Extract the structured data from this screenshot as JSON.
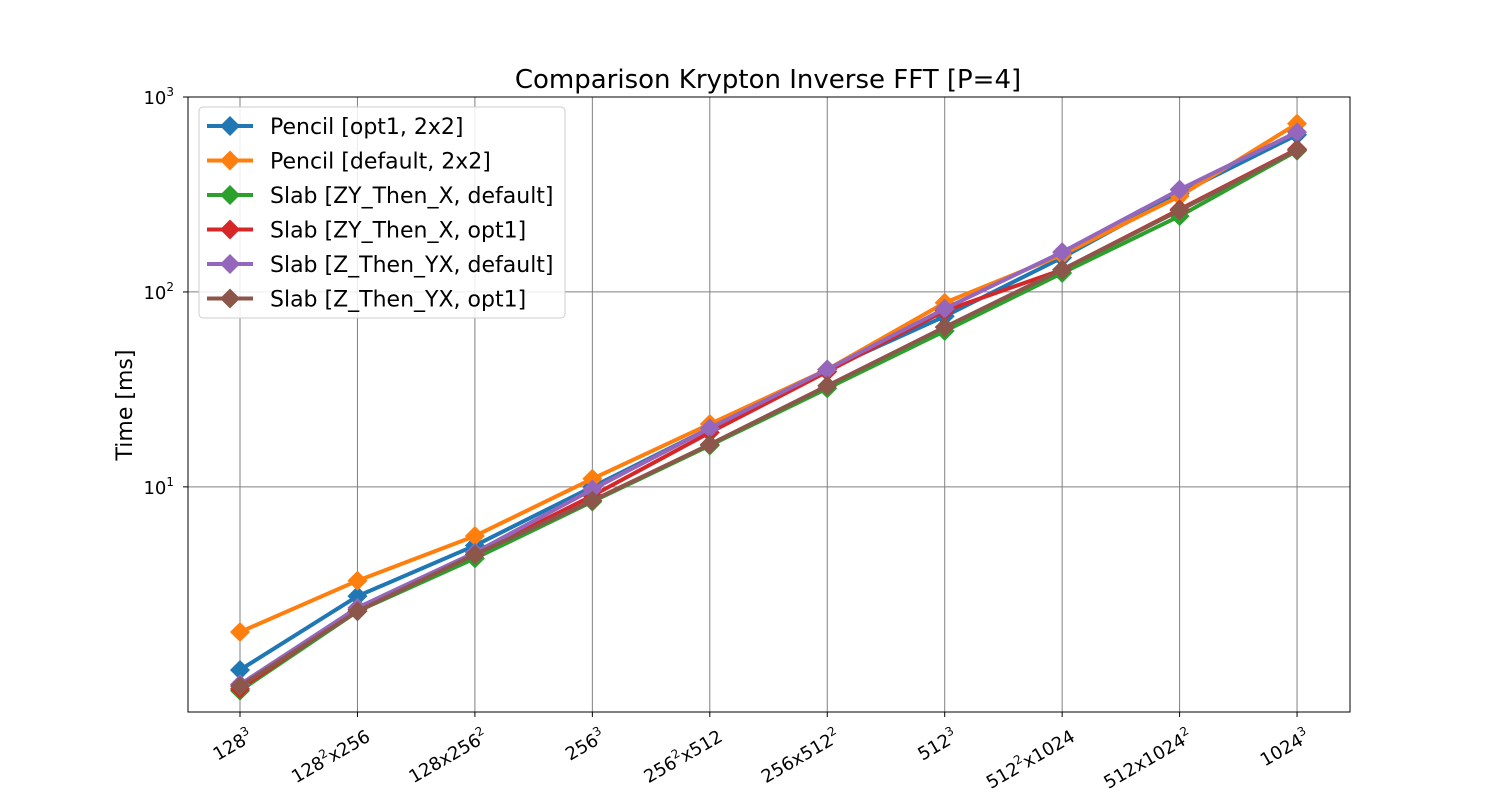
{
  "chart_data": {
    "type": "line",
    "title": "Comparison Krypton Inverse FFT [P=4]",
    "xlabel": "",
    "ylabel": "Time [ms]",
    "y_scale": "log",
    "ylim": [
      0.7,
      1000
    ],
    "grid": true,
    "legend_position": "top-left",
    "x_tick_labels": [
      {
        "base": "128",
        "sup": "3",
        "rest": ""
      },
      {
        "base": "128",
        "sup": "2",
        "rest": "x256"
      },
      {
        "base": "128x256",
        "sup": "2",
        "rest": ""
      },
      {
        "base": "256",
        "sup": "3",
        "rest": ""
      },
      {
        "base": "256",
        "sup": "2",
        "rest": "x512"
      },
      {
        "base": "256x512",
        "sup": "2",
        "rest": ""
      },
      {
        "base": "512",
        "sup": "3",
        "rest": ""
      },
      {
        "base": "512",
        "sup": "2",
        "rest": "x1024"
      },
      {
        "base": "512x1024",
        "sup": "2",
        "rest": ""
      },
      {
        "base": "1024",
        "sup": "3",
        "rest": ""
      }
    ],
    "y_ticks": [
      {
        "value": 10,
        "base": "10",
        "sup": "1"
      },
      {
        "value": 100,
        "base": "10",
        "sup": "2"
      },
      {
        "value": 1000,
        "base": "10",
        "sup": "3"
      }
    ],
    "series": [
      {
        "name": "Pencil [opt1, 2x2]",
        "color": "#1f77b4",
        "values": [
          1.15,
          2.75,
          5.0,
          10.0,
          20.0,
          40.0,
          75.0,
          150.0,
          320.0,
          640.0
        ]
      },
      {
        "name": "Pencil [default, 2x2]",
        "color": "#ff7f0e",
        "values": [
          1.8,
          3.3,
          5.6,
          11.0,
          21.0,
          40.0,
          88.0,
          155.0,
          310.0,
          730.0
        ]
      },
      {
        "name": "Slab [ZY_Then_X, default]",
        "color": "#2ca02c",
        "values": [
          0.9,
          2.3,
          4.3,
          8.4,
          16.3,
          32.0,
          63.0,
          125.0,
          245.0,
          530.0
        ]
      },
      {
        "name": "Slab [ZY_Then_X, opt1]",
        "color": "#d62728",
        "values": [
          0.92,
          2.35,
          4.5,
          9.0,
          19.0,
          39.0,
          80.0,
          130.0,
          265.0,
          540.0
        ]
      },
      {
        "name": "Slab [Z_Then_YX, default]",
        "color": "#9467bd",
        "values": [
          0.97,
          2.4,
          4.6,
          9.7,
          20.0,
          40.0,
          82.0,
          160.0,
          335.0,
          660.0
        ]
      },
      {
        "name": "Slab [Z_Then_YX, opt1]",
        "color": "#8c564b",
        "values": [
          0.95,
          2.3,
          4.5,
          8.5,
          16.5,
          33.0,
          66.0,
          130.0,
          262.0,
          535.0
        ]
      }
    ]
  }
}
